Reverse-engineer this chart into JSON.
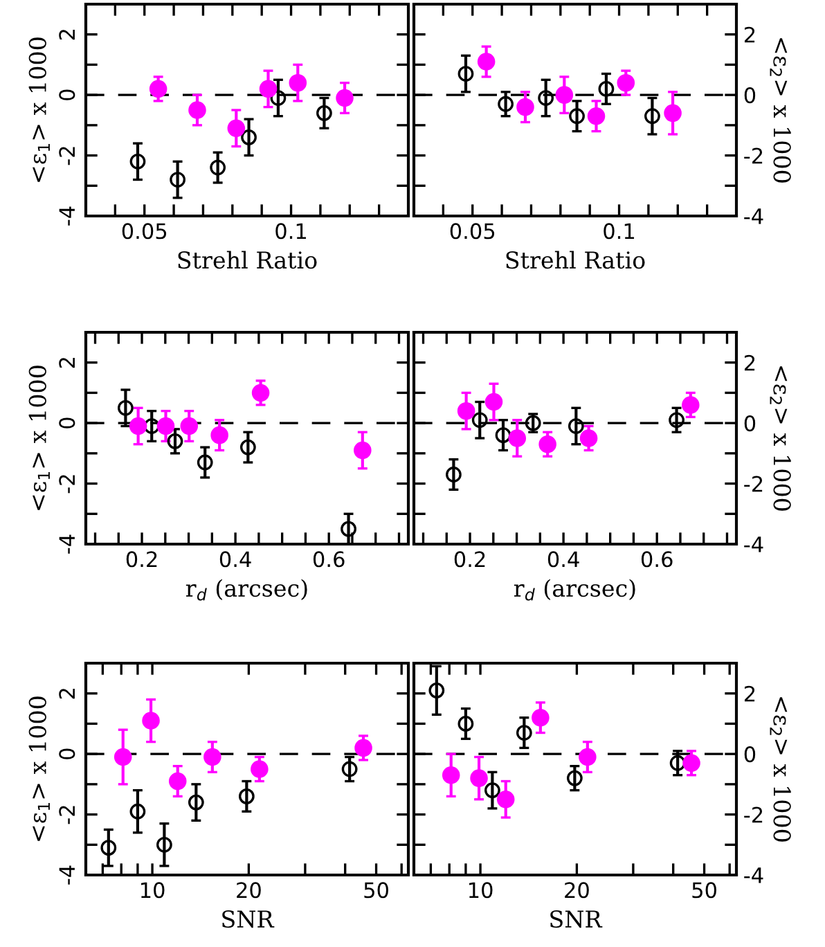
{
  "chart_data": [
    {
      "type": "scatter",
      "xlabel": "Strehl Ratio",
      "ylabel": "<ε$_{1}$> x 1000",
      "xlim": [
        0.03,
        0.14
      ],
      "ylim": [
        -4,
        3
      ],
      "xticks": [
        {
          "value": 0.04,
          "label": null
        },
        {
          "value": 0.05,
          "label": "0.05"
        },
        {
          "value": 0.06,
          "label": null
        },
        {
          "value": 0.07,
          "label": null
        },
        {
          "value": 0.08,
          "label": null
        },
        {
          "value": 0.09,
          "label": null
        },
        {
          "value": 0.1,
          "label": "0.1"
        },
        {
          "value": 0.11,
          "label": null
        },
        {
          "value": 0.12,
          "label": null
        },
        {
          "value": 0.13,
          "label": null
        }
      ],
      "yticks": [
        -4,
        {
          "value": -3,
          "label": null
        },
        -2,
        {
          "value": -1,
          "label": null
        },
        0,
        {
          "value": 1,
          "label": null
        },
        2,
        {
          "value": 3,
          "label": null
        }
      ],
      "marker": "circle",
      "legend": false,
      "ref_lines": [
        {
          "axis": "y",
          "value": 0,
          "line_style": "dashed",
          "color": "#000000"
        }
      ],
      "series": [
        {
          "color": "#000000",
          "x": [
            0.0477,
            0.0613,
            0.075,
            0.0856,
            0.0956,
            0.1113
          ],
          "values": [
            -2.2,
            -2.8,
            -2.4,
            -1.4,
            -0.1,
            -0.6
          ],
          "errors": [
            0.6,
            0.6,
            0.5,
            0.6,
            0.6,
            0.5
          ]
        },
        {
          "color": "#ff00ff",
          "x": [
            0.0547,
            0.068,
            0.0813,
            0.0922,
            0.1023,
            0.1183
          ],
          "values": [
            0.2,
            -0.5,
            -1.1,
            0.2,
            0.4,
            -0.1
          ],
          "errors": [
            0.4,
            0.5,
            0.6,
            0.6,
            0.6,
            0.5
          ]
        }
      ]
    },
    {
      "type": "scatter",
      "xlabel": "Strehl Ratio",
      "y2label": "<ε$_{2}$> x 1000",
      "xlim": [
        0.03,
        0.14
      ],
      "y2lim": [
        -4,
        3
      ],
      "xticks": [
        {
          "value": 0.04,
          "label": null
        },
        {
          "value": 0.05,
          "label": "0.05"
        },
        {
          "value": 0.06,
          "label": null
        },
        {
          "value": 0.07,
          "label": null
        },
        {
          "value": 0.08,
          "label": null
        },
        {
          "value": 0.09,
          "label": null
        },
        {
          "value": 0.1,
          "label": "0.1"
        },
        {
          "value": 0.11,
          "label": null
        },
        {
          "value": 0.12,
          "label": null
        },
        {
          "value": 0.13,
          "label": null
        }
      ],
      "y2ticks": [
        -4,
        {
          "value": -3,
          "label": null
        },
        -2,
        {
          "value": -1,
          "label": null
        },
        0,
        {
          "value": 1,
          "label": null
        },
        2,
        {
          "value": 3,
          "label": null
        }
      ],
      "marker": "circle",
      "legend": false,
      "ref_lines": [
        {
          "axis": "y2",
          "value": 0,
          "line_style": "dashed",
          "color": "#000000"
        }
      ],
      "series": [
        {
          "color": "#000000",
          "axis": "y2",
          "x": [
            0.0477,
            0.0613,
            0.075,
            0.0856,
            0.0956,
            0.1113
          ],
          "values": [
            0.7,
            -0.3,
            -0.1,
            -0.7,
            0.2,
            -0.7
          ],
          "errors": [
            0.6,
            0.4,
            0.6,
            0.5,
            0.5,
            0.6
          ]
        },
        {
          "color": "#ff00ff",
          "axis": "y2",
          "x": [
            0.0547,
            0.068,
            0.0813,
            0.0922,
            0.1023,
            0.1183
          ],
          "values": [
            1.1,
            -0.4,
            0.0,
            -0.7,
            0.4,
            -0.6
          ],
          "errors": [
            0.5,
            0.5,
            0.6,
            0.5,
            0.4,
            0.7
          ]
        }
      ]
    },
    {
      "type": "scatter",
      "xlabel": "r$_{d}$ (arcsec)",
      "ylabel": "<ε$_{1}$> x 1000",
      "xlim": [
        0.08,
        0.77
      ],
      "ylim": [
        -4,
        3
      ],
      "xticks": [
        {
          "value": 0.1,
          "label": null
        },
        {
          "value": 0.15,
          "label": null
        },
        {
          "value": 0.2,
          "label": "0.2"
        },
        {
          "value": 0.25,
          "label": null
        },
        {
          "value": 0.3,
          "label": null
        },
        {
          "value": 0.35,
          "label": null
        },
        {
          "value": 0.4,
          "label": "0.4"
        },
        {
          "value": 0.45,
          "label": null
        },
        {
          "value": 0.5,
          "label": null
        },
        {
          "value": 0.55,
          "label": null
        },
        {
          "value": 0.6,
          "label": "0.6"
        },
        {
          "value": 0.65,
          "label": null
        },
        {
          "value": 0.7,
          "label": null
        },
        {
          "value": 0.75,
          "label": null
        }
      ],
      "yticks": [
        -4,
        {
          "value": -3,
          "label": null
        },
        -2,
        {
          "value": -1,
          "label": null
        },
        0,
        {
          "value": 1,
          "label": null
        },
        2,
        {
          "value": 3,
          "label": null
        }
      ],
      "marker": "circle",
      "legend": false,
      "ref_lines": [
        {
          "axis": "y",
          "value": 0,
          "line_style": "dashed",
          "color": "#000000"
        }
      ],
      "series": [
        {
          "color": "#000000",
          "x": [
            0.165,
            0.221,
            0.271,
            0.335,
            0.427,
            0.642
          ],
          "values": [
            0.5,
            -0.1,
            -0.6,
            -1.3,
            -0.8,
            -3.5
          ],
          "errors": [
            0.6,
            0.5,
            0.4,
            0.5,
            0.5,
            0.5
          ]
        },
        {
          "color": "#ff00ff",
          "x": [
            0.192,
            0.251,
            0.301,
            0.366,
            0.454,
            0.672
          ],
          "values": [
            -0.1,
            -0.1,
            -0.1,
            -0.4,
            1.0,
            -0.9
          ],
          "errors": [
            0.6,
            0.5,
            0.5,
            0.5,
            0.4,
            0.6
          ]
        }
      ]
    },
    {
      "type": "scatter",
      "xlabel": "r$_{d}$ (arcsec)",
      "y2label": "<ε$_{2}$> x 1000",
      "xlim": [
        0.08,
        0.77
      ],
      "y2lim": [
        -4,
        3
      ],
      "xticks": [
        {
          "value": 0.1,
          "label": null
        },
        {
          "value": 0.15,
          "label": null
        },
        {
          "value": 0.2,
          "label": "0.2"
        },
        {
          "value": 0.25,
          "label": null
        },
        {
          "value": 0.3,
          "label": null
        },
        {
          "value": 0.35,
          "label": null
        },
        {
          "value": 0.4,
          "label": "0.4"
        },
        {
          "value": 0.45,
          "label": null
        },
        {
          "value": 0.5,
          "label": null
        },
        {
          "value": 0.55,
          "label": null
        },
        {
          "value": 0.6,
          "label": "0.6"
        },
        {
          "value": 0.65,
          "label": null
        },
        {
          "value": 0.7,
          "label": null
        },
        {
          "value": 0.75,
          "label": null
        }
      ],
      "y2ticks": [
        -4,
        {
          "value": -3,
          "label": null
        },
        -2,
        {
          "value": -1,
          "label": null
        },
        0,
        {
          "value": 1,
          "label": null
        },
        2,
        {
          "value": 3,
          "label": null
        }
      ],
      "marker": "circle",
      "legend": false,
      "ref_lines": [
        {
          "axis": "y2",
          "value": 0,
          "line_style": "dashed",
          "color": "#000000"
        }
      ],
      "series": [
        {
          "color": "#000000",
          "axis": "y2",
          "x": [
            0.165,
            0.221,
            0.271,
            0.335,
            0.427,
            0.642
          ],
          "values": [
            -1.7,
            0.1,
            -0.4,
            0.0,
            -0.1,
            0.1
          ],
          "errors": [
            0.5,
            0.6,
            0.5,
            0.3,
            0.6,
            0.4
          ]
        },
        {
          "color": "#ff00ff",
          "axis": "y2",
          "x": [
            0.192,
            0.251,
            0.301,
            0.366,
            0.454,
            0.672
          ],
          "values": [
            0.4,
            0.7,
            -0.5,
            -0.7,
            -0.5,
            0.6
          ],
          "errors": [
            0.6,
            0.6,
            0.6,
            0.4,
            0.4,
            0.4
          ]
        }
      ]
    },
    {
      "type": "scatter",
      "xlabel": "SNR",
      "ylabel": "<ε$_{1}$> x 1000",
      "log": "x",
      "xlim": [
        6.2,
        63
      ],
      "ylim": [
        -4,
        3
      ],
      "xticks": [
        {
          "value": 7,
          "label": null
        },
        {
          "value": 8,
          "label": null
        },
        {
          "value": 9,
          "label": null
        },
        10,
        20,
        {
          "value": 30,
          "label": null
        },
        {
          "value": 40,
          "label": null
        },
        50,
        {
          "value": 60,
          "label": null
        }
      ],
      "yticks": [
        -4,
        {
          "value": -3,
          "label": null
        },
        -2,
        {
          "value": -1,
          "label": null
        },
        0,
        {
          "value": 1,
          "label": null
        },
        2,
        {
          "value": 3,
          "label": null
        }
      ],
      "marker": "circle",
      "legend": false,
      "ref_lines": [
        {
          "axis": "y",
          "value": 0,
          "line_style": "dashed",
          "color": "#000000"
        }
      ],
      "series": [
        {
          "color": "#000000",
          "x": [
            7.3,
            9.0,
            10.9,
            13.7,
            19.7,
            41.3
          ],
          "values": [
            -3.1,
            -1.9,
            -3.0,
            -1.6,
            -1.4,
            -0.5
          ],
          "errors": [
            0.6,
            0.7,
            0.7,
            0.6,
            0.5,
            0.4
          ]
        },
        {
          "color": "#ff00ff",
          "x": [
            8.1,
            9.9,
            12.0,
            15.4,
            21.6,
            45.6
          ],
          "values": [
            -0.1,
            1.1,
            -0.9,
            -0.1,
            -0.5,
            0.2
          ],
          "errors": [
            0.9,
            0.7,
            0.5,
            0.5,
            0.4,
            0.4
          ]
        }
      ]
    },
    {
      "type": "scatter",
      "xlabel": "SNR",
      "y2label": "<ε$_{2}$> x 1000",
      "log": "x",
      "xlim": [
        6.2,
        63
      ],
      "y2lim": [
        -4,
        3
      ],
      "xticks": [
        {
          "value": 7,
          "label": null
        },
        {
          "value": 8,
          "label": null
        },
        {
          "value": 9,
          "label": null
        },
        10,
        20,
        {
          "value": 30,
          "label": null
        },
        {
          "value": 40,
          "label": null
        },
        50,
        {
          "value": 60,
          "label": null
        }
      ],
      "y2ticks": [
        -4,
        {
          "value": -3,
          "label": null
        },
        -2,
        {
          "value": -1,
          "label": null
        },
        0,
        {
          "value": 1,
          "label": null
        },
        2,
        {
          "value": 3,
          "label": null
        }
      ],
      "marker": "circle",
      "legend": false,
      "ref_lines": [
        {
          "axis": "y2",
          "value": 0,
          "line_style": "dashed",
          "color": "#000000"
        }
      ],
      "series": [
        {
          "color": "#000000",
          "axis": "y2",
          "x": [
            7.3,
            9.0,
            10.9,
            13.7,
            19.7,
            41.3
          ],
          "values": [
            2.1,
            1.0,
            -1.2,
            0.7,
            -0.8,
            -0.3
          ],
          "errors": [
            0.8,
            0.5,
            0.6,
            0.5,
            0.4,
            0.4
          ]
        },
        {
          "color": "#ff00ff",
          "axis": "y2",
          "x": [
            8.1,
            9.9,
            12.0,
            15.4,
            21.6,
            45.6
          ],
          "values": [
            -0.7,
            -0.8,
            -1.5,
            1.2,
            -0.1,
            -0.3
          ],
          "errors": [
            0.7,
            0.7,
            0.6,
            0.5,
            0.5,
            0.4
          ]
        }
      ]
    }
  ]
}
